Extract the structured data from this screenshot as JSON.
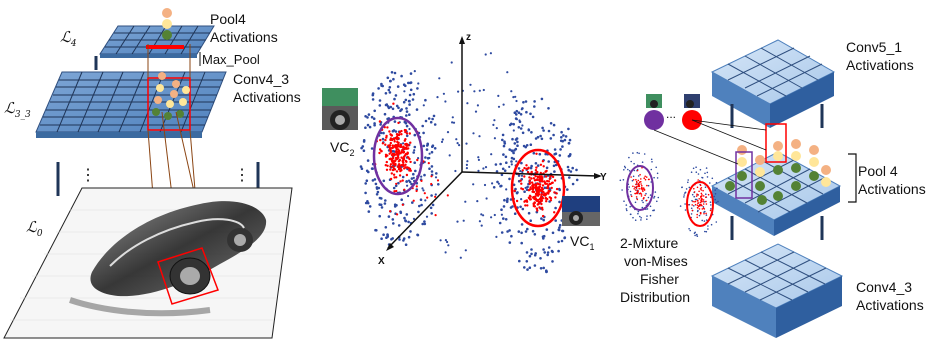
{
  "left_panel": {
    "layer_L4": "ℒ",
    "layer_L4_sub": "4",
    "layer_L33": "ℒ",
    "layer_L33_sub": "3_3",
    "layer_L0": "ℒ",
    "layer_L0_sub": "0",
    "pool4_line1": "Pool4",
    "pool4_line2": "Activations",
    "max_pool": "Max_Pool",
    "conv43_line1": "Conv4_3",
    "conv43_line2": "Activations",
    "ellipsis": "⋮"
  },
  "middle_panel": {
    "axis_z": "z",
    "axis_y": "Y",
    "axis_x": "X",
    "vc2": "VC",
    "vc2_sub": "2",
    "vc1": "VC",
    "vc1_sub": "1"
  },
  "right_panel": {
    "conv51_line1": "Conv5_1",
    "conv51_line2": "Activations",
    "pool4_line1": "Pool 4",
    "pool4_line2": "Activations",
    "conv43_line1": "Conv4_3",
    "conv43_line2": "Activations",
    "mixture_line1": "2-Mixture",
    "mixture_line2": "von-Mises",
    "mixture_line3": "Fisher",
    "mixture_line4": "Distribution",
    "dots": "..."
  },
  "colors": {
    "grid_top": "#4f81bd",
    "grid_front": "#9dc3e6",
    "red": "#ff0000",
    "purple": "#7030a0",
    "peach": "#f4b183",
    "yellow": "#ffe699",
    "green": "#548235",
    "blue_dot": "#2e4aa0",
    "wire": "#8b4513"
  }
}
